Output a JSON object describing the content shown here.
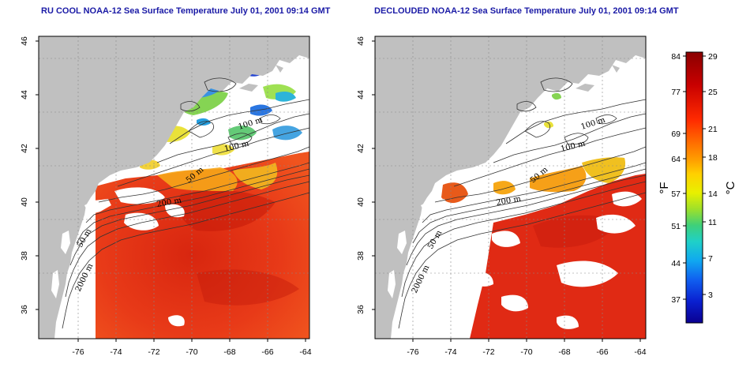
{
  "panels": [
    {
      "id": "left",
      "title": "RU COOL NOAA-12 Sea Surface Temperature July 01, 2001 09:14 GMT",
      "variant": "clouds",
      "x_ticks": [
        "-76",
        "-74",
        "-72",
        "-70",
        "-68",
        "-66",
        "-64"
      ],
      "y_ticks": [
        "36",
        "38",
        "40",
        "42",
        "44",
        "46"
      ],
      "contour_labels": [
        "100 m",
        "100 m",
        "50 m",
        "200 m",
        "50 m",
        "2000 m"
      ]
    },
    {
      "id": "right",
      "title": "DECLOUDED NOAA-12 Sea Surface Temperature July 01, 2001 09:14 GMT",
      "variant": "declouded",
      "x_ticks": [
        "-76",
        "-74",
        "-72",
        "-70",
        "-68",
        "-66",
        "-64"
      ],
      "y_ticks": [
        "36",
        "38",
        "40",
        "42",
        "44",
        "46"
      ],
      "contour_labels": [
        "100 m",
        "100 m",
        "50 m",
        "200 m",
        "50 m",
        "2000 m"
      ]
    }
  ],
  "colorbar": {
    "fahrenheit_ticks": [
      "84",
      "77",
      "69",
      "64",
      "57",
      "51",
      "44",
      "37"
    ],
    "celsius_ticks": [
      "29",
      "25",
      "21",
      "18",
      "14",
      "11",
      "7",
      "3"
    ],
    "fahrenheit_unit": "°F",
    "celsius_unit": "°C"
  },
  "colors": {
    "title": "#1a1aa6",
    "land": "#c0c0c0",
    "warm_water": "#e8321a",
    "cloud": "#ffffff"
  }
}
